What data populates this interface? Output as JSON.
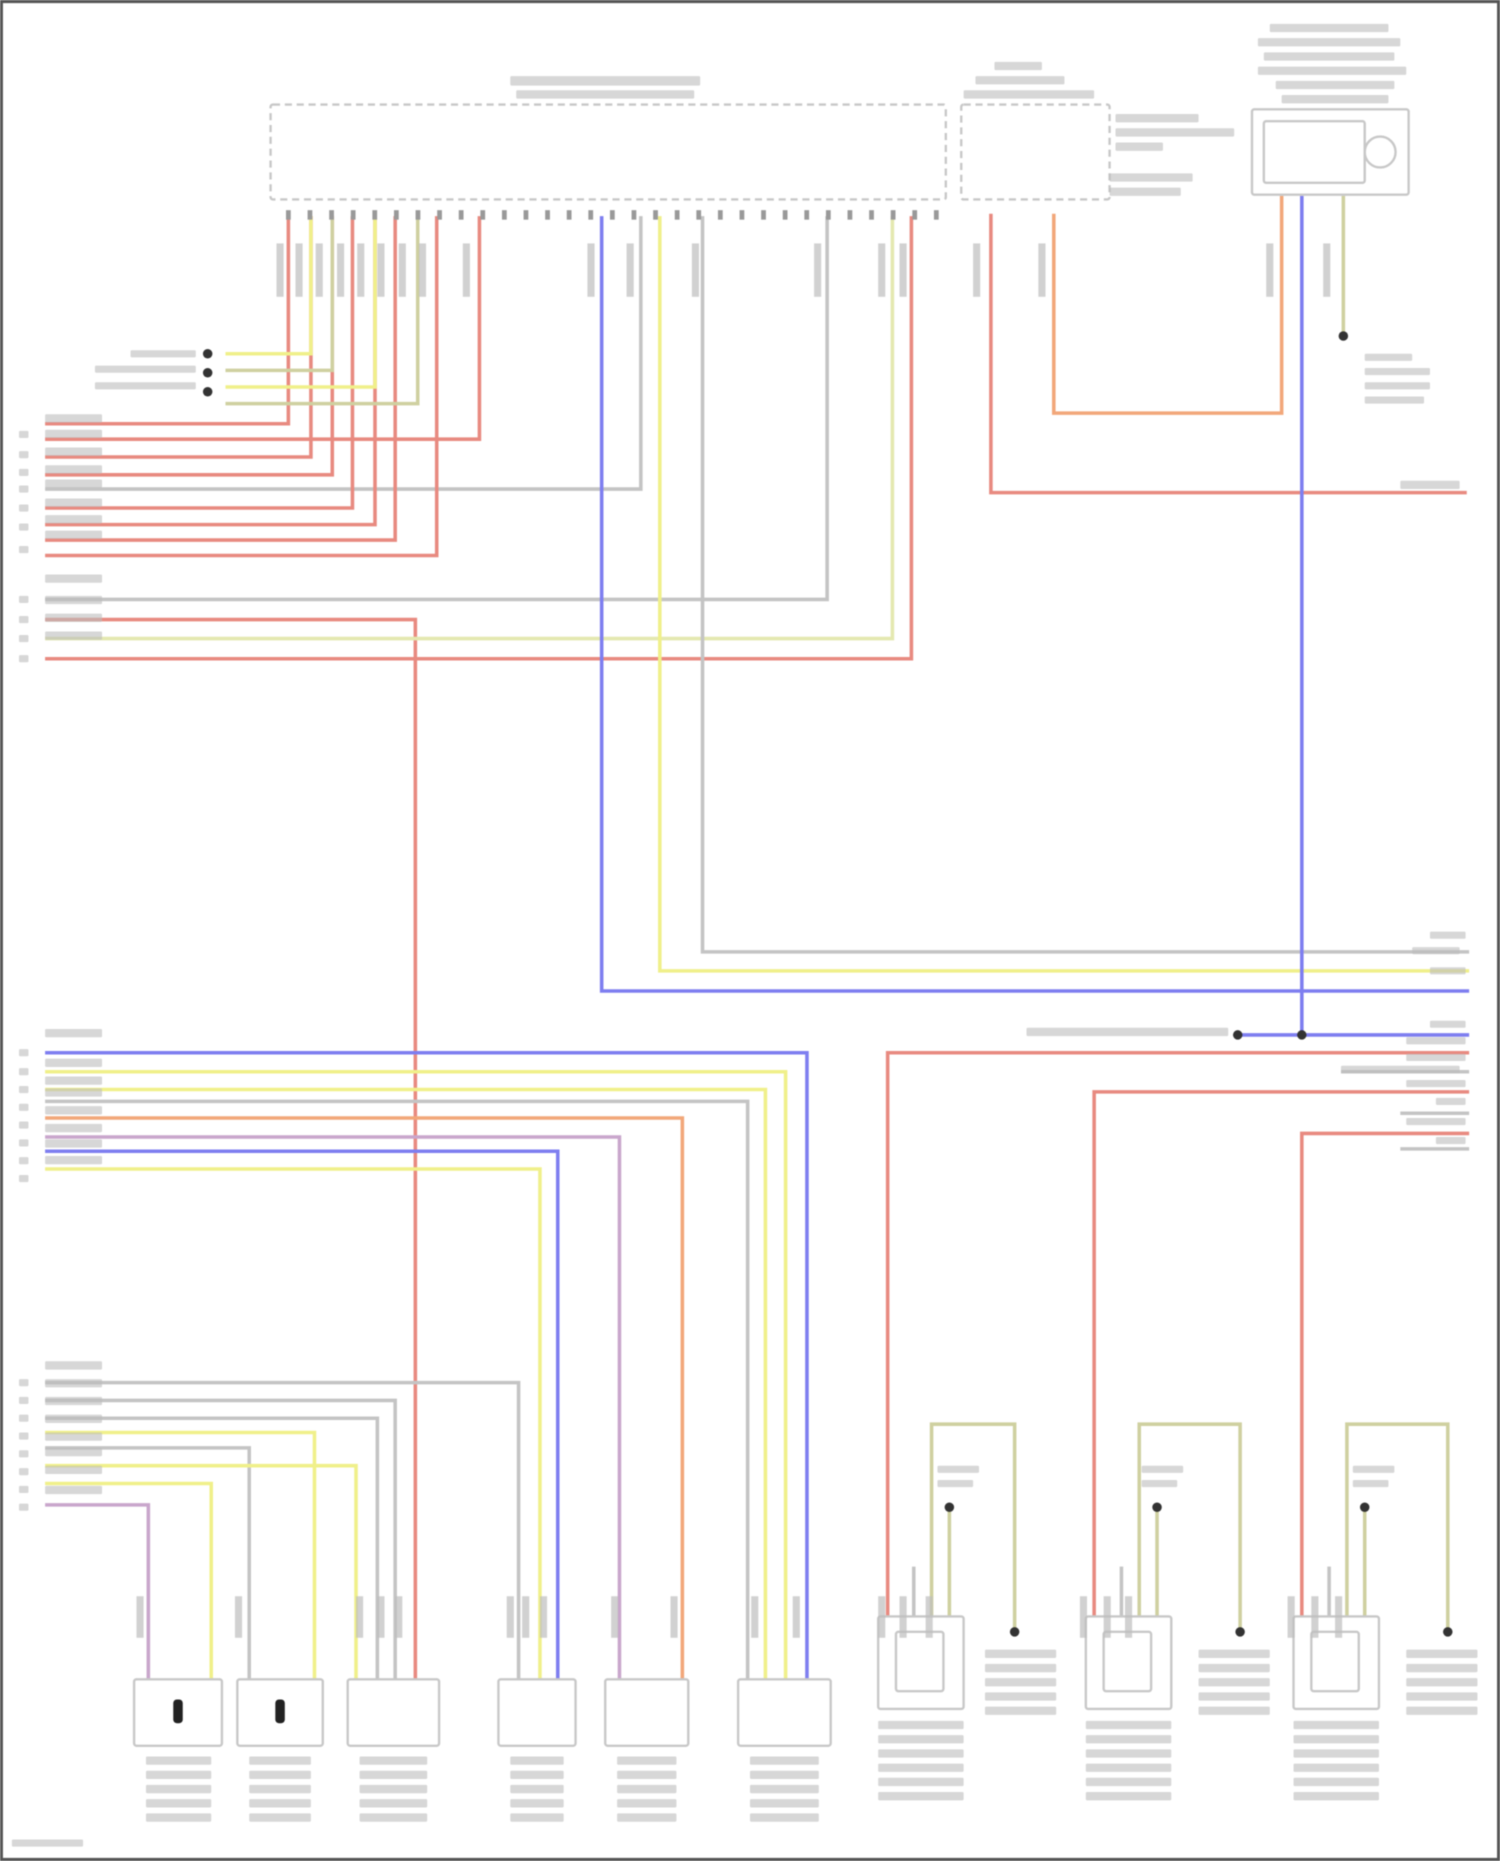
{
  "diagram": {
    "type": "wiring-diagram",
    "text_legibility": "illegible",
    "colors": {
      "frame": "#555555",
      "outline": "#c8c8c8",
      "label": "#bdbdbd",
      "red": "#e88a80",
      "orange": "#f2a77a",
      "yellow": "#f0f08a",
      "light_yellow": "#e4e8b0",
      "gray": "#c4c4c4",
      "blue": "#7e7ef0",
      "purple": "#c9a6cc",
      "olive": "#cfd0a0",
      "dot": "#333333"
    },
    "components": [
      {
        "id": "main-control-module"
      },
      {
        "id": "fuse-block"
      },
      {
        "id": "upper-right-module"
      },
      {
        "id": "bottom-sensor-1"
      },
      {
        "id": "bottom-sensor-2"
      },
      {
        "id": "bottom-sensor-3"
      },
      {
        "id": "bottom-sensor-4"
      },
      {
        "id": "bottom-sensor-5"
      },
      {
        "id": "bottom-sensor-6"
      },
      {
        "id": "right-sensor-1"
      },
      {
        "id": "right-sensor-2"
      },
      {
        "id": "right-sensor-3"
      }
    ]
  }
}
